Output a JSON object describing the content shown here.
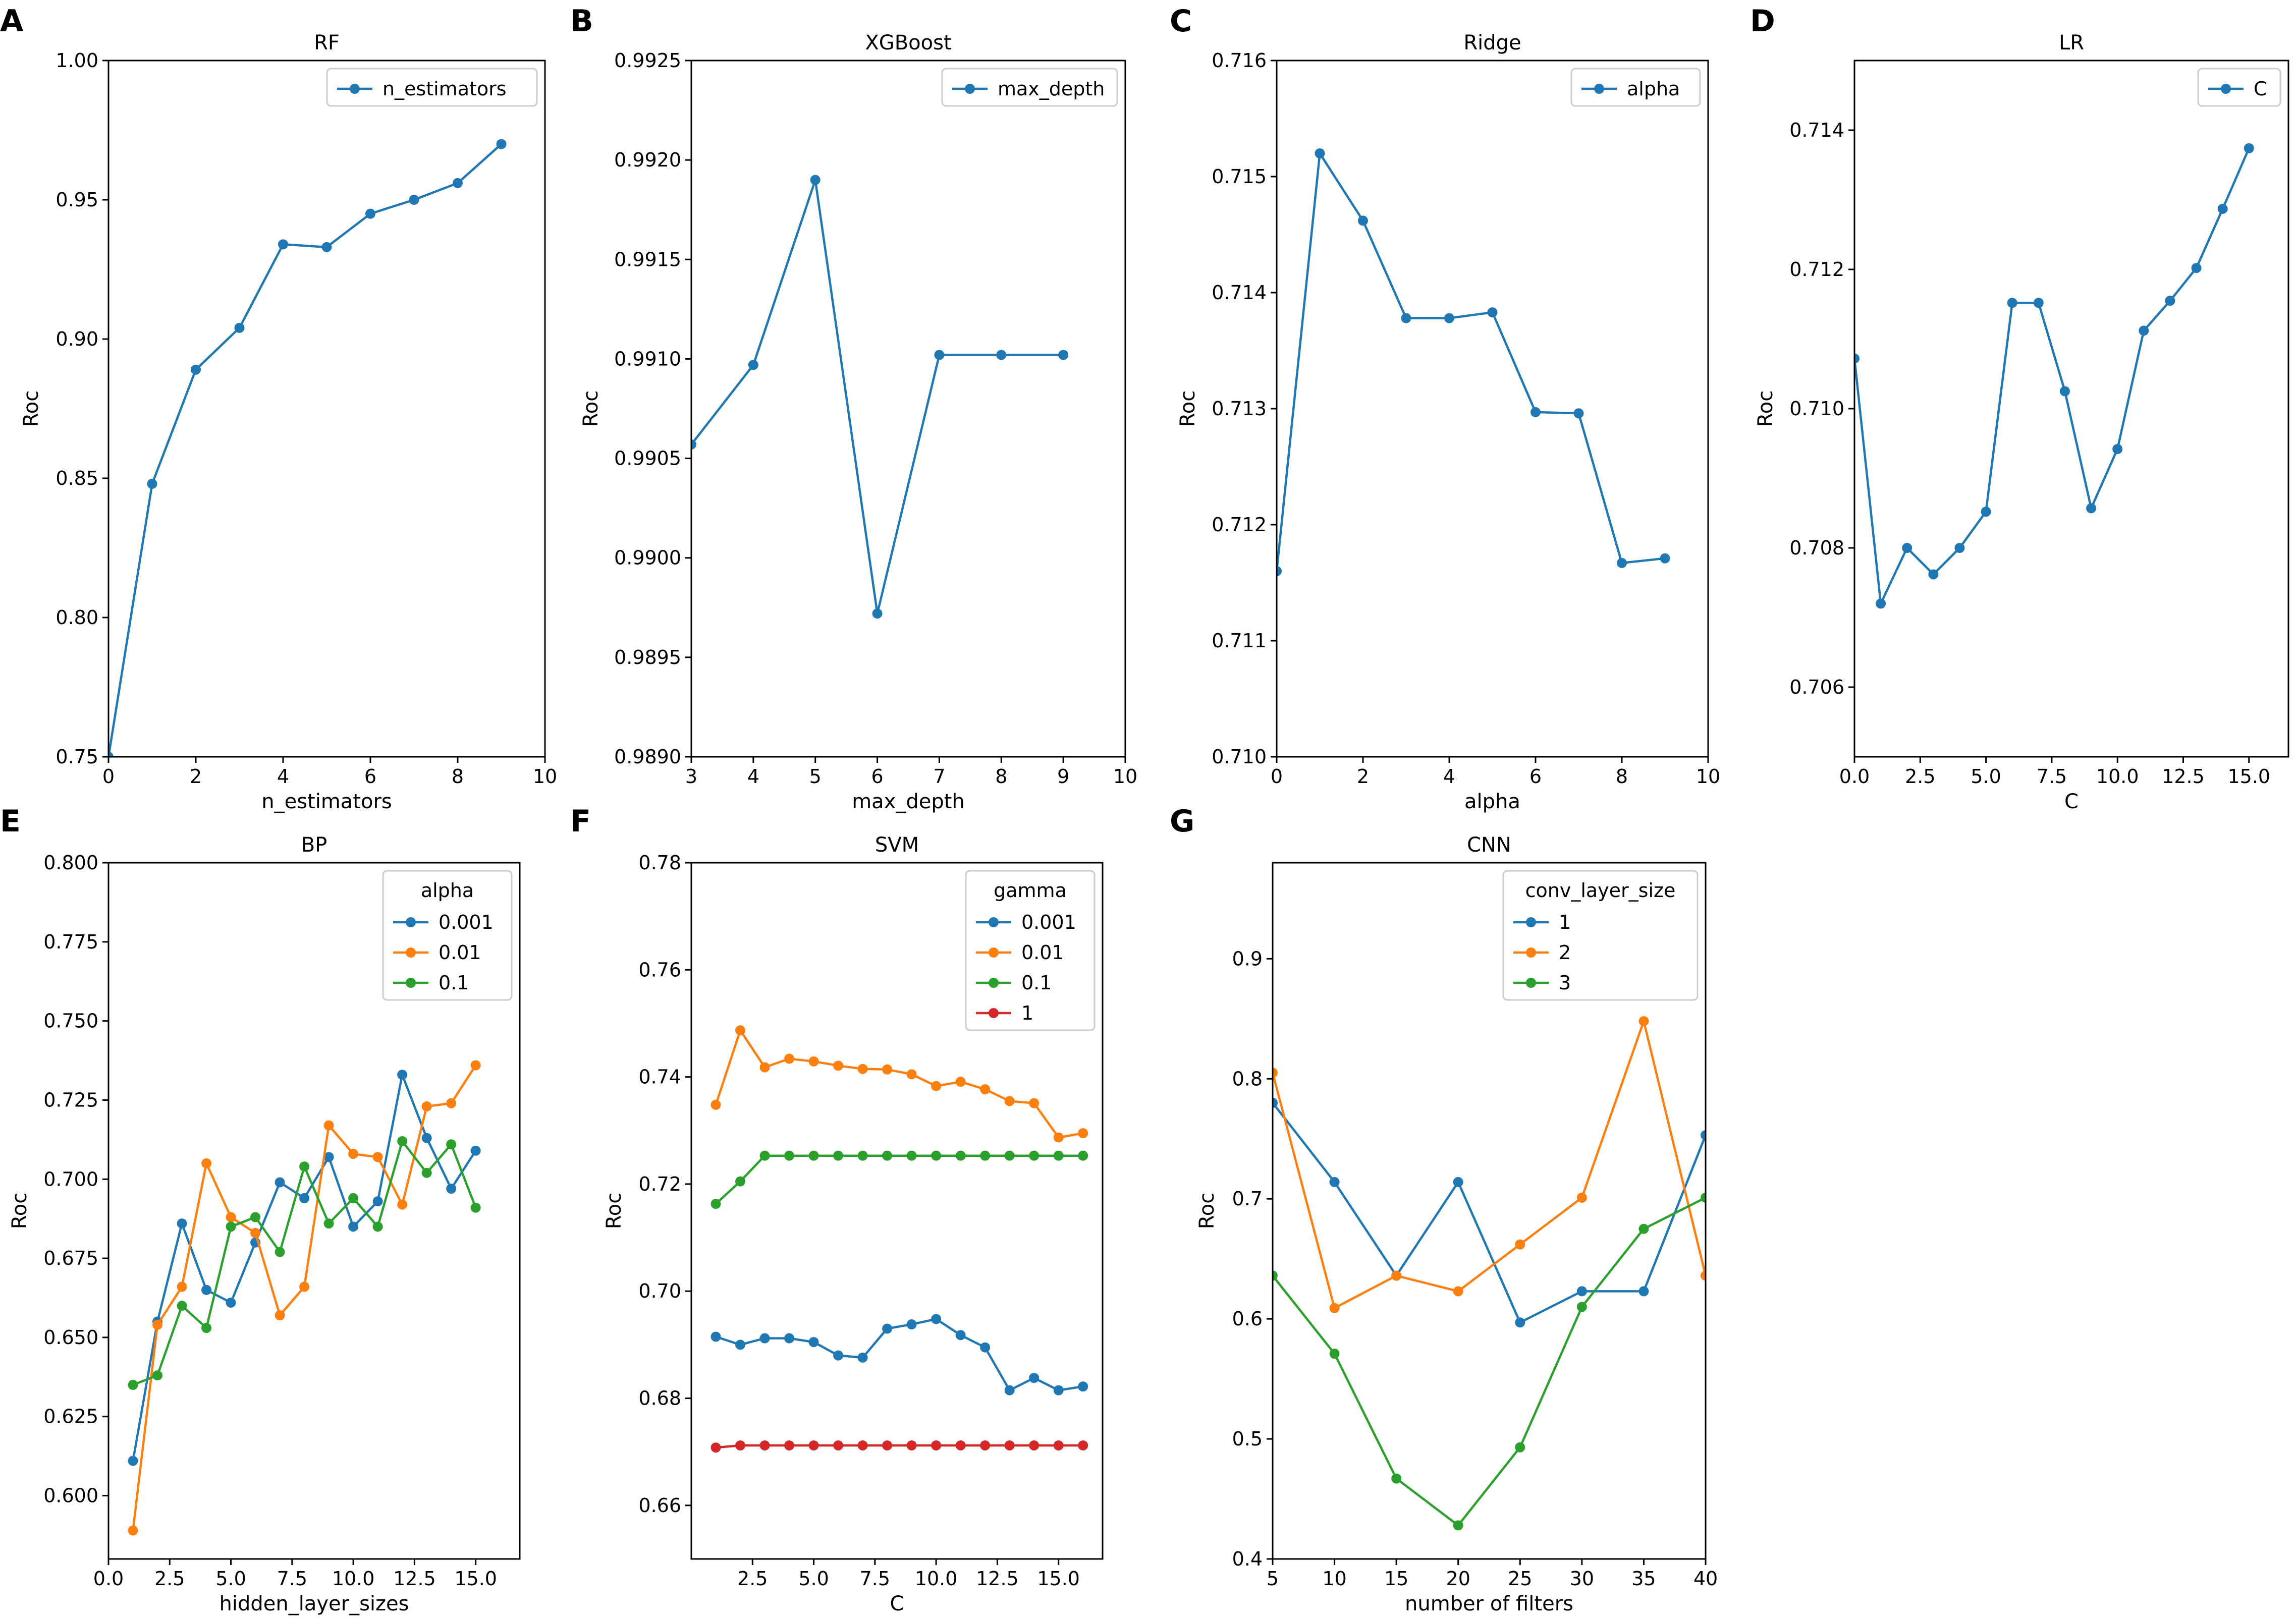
{
  "figure": {
    "panel_letters": [
      "A",
      "B",
      "C",
      "D",
      "E",
      "F",
      "G"
    ]
  },
  "colors": {
    "blue": "#1f77b4",
    "orange": "#ff7f0e",
    "green": "#2ca02c",
    "red": "#d62728"
  },
  "chart_data": [
    {
      "id": "A",
      "type": "line",
      "title": "RF",
      "xlabel": "n_estimators",
      "ylabel": "Roc",
      "xlim": [
        0,
        10
      ],
      "ylim": [
        0.75,
        1.0
      ],
      "xticks": [
        0,
        2,
        4,
        6,
        8,
        10
      ],
      "xtick_labels": [
        "0",
        "2",
        "4",
        "6",
        "8",
        "10"
      ],
      "yticks": [
        0.75,
        0.8,
        0.85,
        0.9,
        0.95,
        1.0
      ],
      "ytick_labels": [
        "0.75",
        "0.80",
        "0.85",
        "0.90",
        "0.95",
        "1.00"
      ],
      "legend_title": "",
      "legend_loc": "upper-right",
      "series": [
        {
          "name": "n_estimators",
          "color": "#1f77b4",
          "x": [
            0,
            1,
            2,
            3,
            4,
            5,
            6,
            7,
            8,
            9
          ],
          "y": [
            0.75,
            0.848,
            0.889,
            0.904,
            0.934,
            0.933,
            0.945,
            0.95,
            0.956,
            0.97
          ]
        }
      ]
    },
    {
      "id": "B",
      "type": "line",
      "title": "XGBoost",
      "xlabel": "max_depth",
      "ylabel": "Roc",
      "xlim": [
        3,
        10
      ],
      "ylim": [
        0.989,
        0.9925
      ],
      "xticks": [
        3,
        4,
        5,
        6,
        7,
        8,
        9,
        10
      ],
      "xtick_labels": [
        "3",
        "4",
        "5",
        "6",
        "7",
        "8",
        "9",
        "10"
      ],
      "yticks": [
        0.989,
        0.9895,
        0.99,
        0.9905,
        0.991,
        0.9915,
        0.992,
        0.9925
      ],
      "ytick_labels": [
        "0.9890",
        "0.9895",
        "0.9900",
        "0.9905",
        "0.9910",
        "0.9915",
        "0.9920",
        "0.9925"
      ],
      "legend_title": "",
      "legend_loc": "upper-right",
      "series": [
        {
          "name": "max_depth",
          "color": "#1f77b4",
          "x": [
            3,
            4,
            5,
            6,
            7,
            8,
            9
          ],
          "y": [
            0.99057,
            0.99097,
            0.9919,
            0.98972,
            0.99102,
            0.99102,
            0.99102
          ]
        }
      ]
    },
    {
      "id": "C",
      "type": "line",
      "title": "Ridge",
      "xlabel": "alpha",
      "ylabel": "Roc",
      "xlim": [
        0,
        10
      ],
      "ylim": [
        0.71,
        0.716
      ],
      "xticks": [
        0,
        2,
        4,
        6,
        8,
        10
      ],
      "xtick_labels": [
        "0",
        "2",
        "4",
        "6",
        "8",
        "10"
      ],
      "yticks": [
        0.71,
        0.711,
        0.712,
        0.713,
        0.714,
        0.715,
        0.716
      ],
      "ytick_labels": [
        "0.710",
        "0.711",
        "0.712",
        "0.713",
        "0.714",
        "0.715",
        "0.716"
      ],
      "legend_title": "",
      "legend_loc": "upper-right",
      "series": [
        {
          "name": "alpha",
          "color": "#1f77b4",
          "x": [
            0,
            1,
            2,
            3,
            4,
            5,
            6,
            7,
            8,
            9
          ],
          "y": [
            0.7116,
            0.7152,
            0.71462,
            0.71378,
            0.71378,
            0.71383,
            0.71297,
            0.71296,
            0.71167,
            0.71171
          ]
        }
      ]
    },
    {
      "id": "D",
      "type": "line",
      "title": "LR",
      "xlabel": "C",
      "ylabel": "Roc",
      "xlim": [
        0,
        16.5
      ],
      "ylim": [
        0.705,
        0.715
      ],
      "xticks": [
        0,
        2.5,
        5,
        7.5,
        10,
        12.5,
        15
      ],
      "xtick_labels": [
        "0.0",
        "2.5",
        "5.0",
        "7.5",
        "10.0",
        "12.5",
        "15.0"
      ],
      "yticks": [
        0.706,
        0.708,
        0.71,
        0.712,
        0.714
      ],
      "ytick_labels": [
        "0.706",
        "0.708",
        "0.710",
        "0.712",
        "0.714"
      ],
      "legend_title": "",
      "legend_loc": "upper-right",
      "series": [
        {
          "name": "C",
          "color": "#1f77b4",
          "x": [
            0,
            1,
            2,
            3,
            4,
            5,
            6,
            7,
            8,
            9,
            10,
            11,
            12,
            13,
            14,
            15
          ],
          "y": [
            0.71072,
            0.7072,
            0.708,
            0.70762,
            0.708,
            0.70852,
            0.71152,
            0.71152,
            0.71025,
            0.70857,
            0.70942,
            0.71112,
            0.71155,
            0.71202,
            0.71287,
            0.71374
          ]
        }
      ]
    },
    {
      "id": "E",
      "type": "line",
      "title": "BP",
      "xlabel": "hidden_layer_sizes",
      "ylabel": "Roc",
      "xlim": [
        0,
        16.8
      ],
      "ylim": [
        0.58,
        0.8
      ],
      "xticks": [
        0,
        2.5,
        5,
        7.5,
        10,
        12.5,
        15
      ],
      "xtick_labels": [
        "0.0",
        "2.5",
        "5.0",
        "7.5",
        "10.0",
        "12.5",
        "15.0"
      ],
      "yticks": [
        0.6,
        0.625,
        0.65,
        0.675,
        0.7,
        0.725,
        0.75,
        0.775,
        0.8
      ],
      "ytick_labels": [
        "0.600",
        "0.625",
        "0.650",
        "0.675",
        "0.700",
        "0.725",
        "0.750",
        "0.775",
        "0.800"
      ],
      "legend_title": "alpha",
      "legend_loc": "upper-right",
      "series": [
        {
          "name": "0.001",
          "color": "#1f77b4",
          "x": [
            1,
            2,
            3,
            4,
            5,
            6,
            7,
            8,
            9,
            10,
            11,
            12,
            13,
            14,
            15
          ],
          "y": [
            0.611,
            0.655,
            0.686,
            0.665,
            0.661,
            0.68,
            0.699,
            0.694,
            0.707,
            0.685,
            0.693,
            0.733,
            0.713,
            0.697,
            0.709
          ]
        },
        {
          "name": "0.01",
          "color": "#ff7f0e",
          "x": [
            1,
            2,
            3,
            4,
            5,
            6,
            7,
            8,
            9,
            10,
            11,
            12,
            13,
            14,
            15
          ],
          "y": [
            0.589,
            0.654,
            0.666,
            0.705,
            0.688,
            0.683,
            0.657,
            0.666,
            0.717,
            0.708,
            0.707,
            0.692,
            0.723,
            0.724,
            0.736
          ]
        },
        {
          "name": "0.1",
          "color": "#2ca02c",
          "x": [
            1,
            2,
            3,
            4,
            5,
            6,
            7,
            8,
            9,
            10,
            11,
            12,
            13,
            14,
            15
          ],
          "y": [
            0.635,
            0.638,
            0.66,
            0.653,
            0.685,
            0.688,
            0.677,
            0.704,
            0.686,
            0.694,
            0.685,
            0.712,
            0.702,
            0.711,
            0.691
          ]
        }
      ]
    },
    {
      "id": "F",
      "type": "line",
      "title": "SVM",
      "xlabel": "C",
      "ylabel": "Roc",
      "xlim": [
        0,
        16.8
      ],
      "ylim": [
        0.65,
        0.78
      ],
      "xticks": [
        2.5,
        5,
        7.5,
        10,
        12.5,
        15
      ],
      "xtick_labels": [
        "2.5",
        "5.0",
        "7.5",
        "10.0",
        "12.5",
        "15.0"
      ],
      "yticks": [
        0.66,
        0.68,
        0.7,
        0.72,
        0.74,
        0.76,
        0.78
      ],
      "ytick_labels": [
        "0.66",
        "0.68",
        "0.70",
        "0.72",
        "0.74",
        "0.76",
        "0.78"
      ],
      "legend_title": "gamma",
      "legend_loc": "upper-right",
      "series": [
        {
          "name": "0.001",
          "color": "#1f77b4",
          "x": [
            1,
            2,
            3,
            4,
            5,
            6,
            7,
            8,
            9,
            10,
            11,
            12,
            13,
            14,
            15,
            16
          ],
          "y": [
            0.6915,
            0.69,
            0.6912,
            0.6912,
            0.6905,
            0.688,
            0.6876,
            0.693,
            0.6938,
            0.6948,
            0.6918,
            0.6895,
            0.6815,
            0.6838,
            0.6815,
            0.6822
          ]
        },
        {
          "name": "0.01",
          "color": "#ff7f0e",
          "x": [
            1,
            2,
            3,
            4,
            5,
            6,
            7,
            8,
            9,
            10,
            11,
            12,
            13,
            14,
            15,
            16
          ],
          "y": [
            0.7348,
            0.7487,
            0.7418,
            0.7434,
            0.7429,
            0.7421,
            0.7415,
            0.7414,
            0.7405,
            0.7383,
            0.7391,
            0.7377,
            0.7355,
            0.7351,
            0.7287,
            0.7295
          ]
        },
        {
          "name": "0.1",
          "color": "#2ca02c",
          "x": [
            1,
            2,
            3,
            4,
            5,
            6,
            7,
            8,
            9,
            10,
            11,
            12,
            13,
            14,
            15,
            16
          ],
          "y": [
            0.7163,
            0.7205,
            0.7253,
            0.7253,
            0.7253,
            0.7253,
            0.7253,
            0.7253,
            0.7253,
            0.7253,
            0.7253,
            0.7253,
            0.7253,
            0.7253,
            0.7253,
            0.7253
          ]
        },
        {
          "name": "1",
          "color": "#d62728",
          "x": [
            1,
            2,
            3,
            4,
            5,
            6,
            7,
            8,
            9,
            10,
            11,
            12,
            13,
            14,
            15,
            16
          ],
          "y": [
            0.6708,
            0.6712,
            0.6712,
            0.6712,
            0.6712,
            0.6712,
            0.6712,
            0.6712,
            0.6712,
            0.6712,
            0.6712,
            0.6712,
            0.6712,
            0.6712,
            0.6712,
            0.6712
          ]
        }
      ]
    },
    {
      "id": "G",
      "type": "line",
      "title": "CNN",
      "xlabel": "number of filters",
      "ylabel": "Roc",
      "xlim": [
        5,
        40
      ],
      "ylim": [
        0.4,
        0.98
      ],
      "xticks": [
        5,
        10,
        15,
        20,
        25,
        30,
        35,
        40
      ],
      "xtick_labels": [
        "5",
        "10",
        "15",
        "20",
        "25",
        "30",
        "35",
        "40"
      ],
      "yticks": [
        0.4,
        0.5,
        0.6,
        0.7,
        0.8,
        0.9
      ],
      "ytick_labels": [
        "0.4",
        "0.5",
        "0.6",
        "0.7",
        "0.8",
        "0.9"
      ],
      "legend_title": "conv_layer_size",
      "legend_loc": "upper-right",
      "series": [
        {
          "name": "1",
          "color": "#1f77b4",
          "x": [
            5,
            10,
            15,
            20,
            25,
            30,
            35,
            40
          ],
          "y": [
            0.78,
            0.714,
            0.636,
            0.714,
            0.597,
            0.623,
            0.623,
            0.753
          ]
        },
        {
          "name": "2",
          "color": "#ff7f0e",
          "x": [
            5,
            10,
            15,
            20,
            25,
            30,
            35,
            40
          ],
          "y": [
            0.805,
            0.609,
            0.636,
            0.623,
            0.662,
            0.701,
            0.848,
            0.636
          ]
        },
        {
          "name": "3",
          "color": "#2ca02c",
          "x": [
            5,
            10,
            15,
            20,
            25,
            30,
            35,
            40
          ],
          "y": [
            0.636,
            0.571,
            0.467,
            0.428,
            0.493,
            0.61,
            0.675,
            0.701
          ]
        }
      ]
    }
  ]
}
